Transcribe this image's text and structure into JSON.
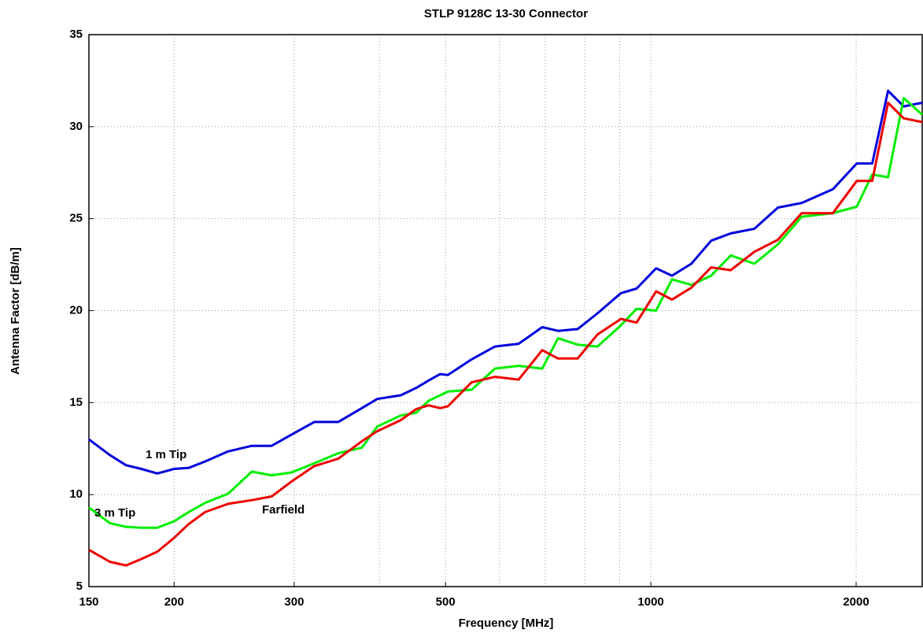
{
  "chart_data": {
    "type": "line",
    "title": "STLP 9128C 13-30 Connector",
    "xlabel": "Frequency [MHz]",
    "ylabel": "Antenna Factor [dB/m]",
    "xscale": "log",
    "grid": true,
    "xlim": [
      150,
      2500
    ],
    "ylim": [
      5,
      35
    ],
    "xticks": [
      150,
      200,
      300,
      500,
      1000,
      2000
    ],
    "xminorticks": [
      400,
      600,
      700,
      800,
      900
    ],
    "yticks": [
      5,
      10,
      15,
      20,
      25,
      30,
      35
    ],
    "x": [
      150,
      161,
      170,
      179,
      189,
      200,
      210,
      222,
      240,
      260,
      278,
      297,
      321,
      348,
      377,
      397,
      430,
      453,
      472,
      491,
      504,
      546,
      591,
      640,
      693,
      731,
      781,
      835,
      904,
      953,
      1018,
      1074,
      1147,
      1226,
      1310,
      1419,
      1536,
      1664,
      1849,
      2004,
      2112,
      2228,
      2349,
      2500
    ],
    "series": [
      {
        "name": "1 m Tip",
        "color": "#0000dd",
        "values": [
          13.0,
          12.15,
          11.6,
          11.4,
          11.15,
          11.4,
          11.45,
          11.8,
          12.35,
          12.65,
          12.65,
          13.25,
          13.95,
          13.95,
          14.7,
          15.2,
          15.4,
          15.8,
          16.2,
          16.55,
          16.5,
          17.35,
          18.05,
          18.2,
          19.1,
          18.9,
          19.0,
          19.85,
          20.95,
          21.2,
          22.3,
          21.9,
          22.55,
          23.8,
          24.2,
          24.45,
          25.6,
          25.85,
          26.6,
          28.0,
          28.0,
          31.95,
          31.1,
          31.3
        ]
      },
      {
        "name": "3 m Tip",
        "color": "#00ee00",
        "values": [
          9.3,
          8.45,
          8.25,
          8.2,
          8.2,
          8.55,
          9.05,
          9.55,
          10.05,
          11.25,
          11.05,
          11.2,
          11.7,
          12.25,
          12.55,
          13.7,
          14.3,
          14.45,
          15.1,
          15.4,
          15.6,
          15.7,
          16.85,
          17.0,
          16.85,
          18.5,
          18.15,
          18.05,
          19.2,
          20.1,
          20.0,
          21.7,
          21.4,
          21.9,
          23.0,
          22.55,
          23.6,
          25.1,
          25.3,
          25.65,
          27.4,
          27.25,
          31.55,
          30.65
        ]
      },
      {
        "name": "Farfield",
        "color": "#ee0000",
        "values": [
          7.0,
          6.35,
          6.15,
          6.5,
          6.9,
          7.65,
          8.4,
          9.05,
          9.5,
          9.7,
          9.9,
          10.7,
          11.55,
          11.95,
          12.9,
          13.45,
          14.05,
          14.65,
          14.85,
          14.7,
          14.8,
          16.1,
          16.4,
          16.25,
          17.85,
          17.4,
          17.4,
          18.7,
          19.55,
          19.35,
          21.05,
          20.6,
          21.25,
          22.35,
          22.2,
          23.2,
          23.85,
          25.3,
          25.3,
          27.05,
          27.05,
          31.3,
          30.45,
          30.25
        ]
      }
    ]
  }
}
